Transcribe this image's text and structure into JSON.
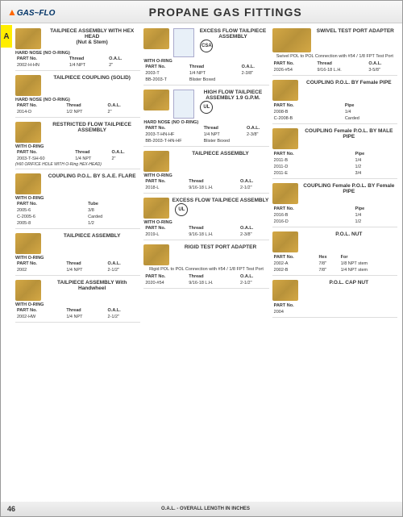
{
  "page": {
    "title": "PROPANE GAS FITTINGS",
    "logo": "GAS~FLO",
    "tab": "A",
    "pagenum": "46",
    "oal_note": "O.A.L. - OVERALL LENGTH IN INCHES"
  },
  "col1": [
    {
      "name": "TAILPIECE ASSEMBLY WITH HEX HEAD",
      "sub2": "(Nut & Stem)",
      "note": "HARD NOSE (NO O-RING)",
      "cols": [
        "PART No.",
        "Thread",
        "O.A.L."
      ],
      "rows": [
        [
          "2002-H-HN",
          "1/4 NPT",
          "2\""
        ]
      ]
    },
    {
      "name": "TAILPIECE COUPLING (SOLID)",
      "note": "HARD NOSE (NO O-RING)",
      "cols": [
        "PART No.",
        "Thread",
        "O.A.L."
      ],
      "rows": [
        [
          "2014-D",
          "1/2 NPT",
          "2\""
        ]
      ]
    },
    {
      "name": "RESTRICTED FLOW TAILPIECE ASSEMBLY",
      "note": "WITH O-RING",
      "cols": [
        "PART No.",
        "Thread",
        "O.A.L."
      ],
      "rows": [
        [
          "2003-T-SH-60",
          "1/4 NPT",
          "2\""
        ]
      ],
      "foot": "(#60 ORIFICE HOLE WITH O-Ring HEX-HEAD)"
    },
    {
      "name": "COUPLING P.O.L. BY S.A.E. FLARE",
      "note": "WITH O-RING",
      "cols": [
        "PART No.",
        "Tube"
      ],
      "rows": [
        [
          "2005-6",
          "3/8"
        ],
        [
          "C-2005-6",
          "Carded"
        ],
        [
          "2005-8",
          "1/2"
        ]
      ]
    },
    {
      "name": "TAILPIECE ASSEMBLY",
      "note": "WITH O-RING",
      "cols": [
        "PART No.",
        "Thread",
        "O.A.L."
      ],
      "rows": [
        [
          "2002",
          "1/4 NPT",
          "2-1/2\""
        ]
      ]
    },
    {
      "name": "TAILPIECE ASSEMBLY With Handwheel",
      "note": "WITH O-RING",
      "cols": [
        "PART No.",
        "Thread",
        "O.A.L."
      ],
      "rows": [
        [
          "2002-HW",
          "1/4 NPT",
          "2-1/2\""
        ]
      ]
    }
  ],
  "col2": [
    {
      "name": "EXCESS FLOW TAILPIECE ASSEMBLY",
      "cert": "CSA",
      "note": "WITH O-RING",
      "cols": [
        "PART No.",
        "Thread",
        "O.A.L."
      ],
      "rows": [
        [
          "2003-T",
          "1/4 NPT",
          "2-3/8\""
        ],
        [
          "BB-2003-T",
          "Blister Boxed",
          ""
        ]
      ],
      "pkg": true
    },
    {
      "name": "HIGH FLOW TAILPIECE ASSEMBLY 1.9 G.P.M.",
      "cert": "UL",
      "note": "HARD NOSE (NO O-RING)",
      "cols": [
        "PART No.",
        "Thread",
        "O.A.L."
      ],
      "rows": [
        [
          "2003-T-HN-HF",
          "1/4 NPT",
          "2-3/8\""
        ],
        [
          "BB-2003-T-HN-HF",
          "Blister Boxed",
          ""
        ]
      ],
      "pkg": true
    },
    {
      "name": "TAILPIECE ASSEMBLY",
      "note": "WITH O-RING",
      "cols": [
        "PART No.",
        "Thread",
        "O.A.L."
      ],
      "rows": [
        [
          "2018-L",
          "9/16-18 L.H.",
          "2-1/2\""
        ]
      ]
    },
    {
      "name": "EXCESS FLOW TAILPIECE ASSEMBLY",
      "cert": "UL",
      "note": "WITH O-RING",
      "cols": [
        "PART No.",
        "Thread",
        "O.A.L."
      ],
      "rows": [
        [
          "2019-L",
          "9/16-18 L.H.",
          "2-3/8\""
        ]
      ]
    },
    {
      "name": "RIGID TEST PORT ADAPTER",
      "desc": "Rigid POL to POL Connection with #54 / 1/8 FPT Test Port",
      "cols": [
        "PART No.",
        "Thread",
        "O.A.L."
      ],
      "rows": [
        [
          "2020-#54",
          "9/16-18 L.H.",
          "2-1/2\""
        ]
      ]
    }
  ],
  "col3": [
    {
      "name": "SWIVEL TEST PORT ADAPTER",
      "desc": "Swivel POL to POL Connection with #54 / 1/8 FPT Test Port",
      "cols": [
        "PART No.",
        "Thread",
        "O.A.L."
      ],
      "rows": [
        [
          "2026-#54",
          "9/16-18 L.H.",
          "3-5/8\""
        ]
      ],
      "wide": true
    },
    {
      "name": "COUPLING P.O.L. BY Female PIPE",
      "cols": [
        "PART No.",
        "Pipe"
      ],
      "rows": [
        [
          "2008-B",
          "1/4"
        ],
        [
          "C-2008-B",
          "Carded"
        ]
      ]
    },
    {
      "name": "COUPLING Female P.O.L. BY MALE PIPE",
      "cols": [
        "PART No.",
        "Pipe"
      ],
      "rows": [
        [
          "2011-B",
          "1/4"
        ],
        [
          "2011-D",
          "1/2"
        ],
        [
          "2011-E",
          "3/4"
        ]
      ]
    },
    {
      "name": "COUPLING Female P.O.L. BY Female PIPE",
      "cols": [
        "PART No.",
        "Pipe"
      ],
      "rows": [
        [
          "2016-B",
          "1/4"
        ],
        [
          "2016-D",
          "1/2"
        ]
      ]
    },
    {
      "name": "P.O.L. NUT",
      "cols": [
        "PART No.",
        "Hex",
        "For"
      ],
      "rows": [
        [
          "2002-A",
          "7/8\"",
          "1/8 NPT stem"
        ],
        [
          "2002-B",
          "7/8\"",
          "1/4 NPT stem"
        ]
      ]
    },
    {
      "name": "P.O.L. CAP NUT",
      "cols": [
        "PART No."
      ],
      "rows": [
        [
          "2004"
        ]
      ]
    }
  ]
}
